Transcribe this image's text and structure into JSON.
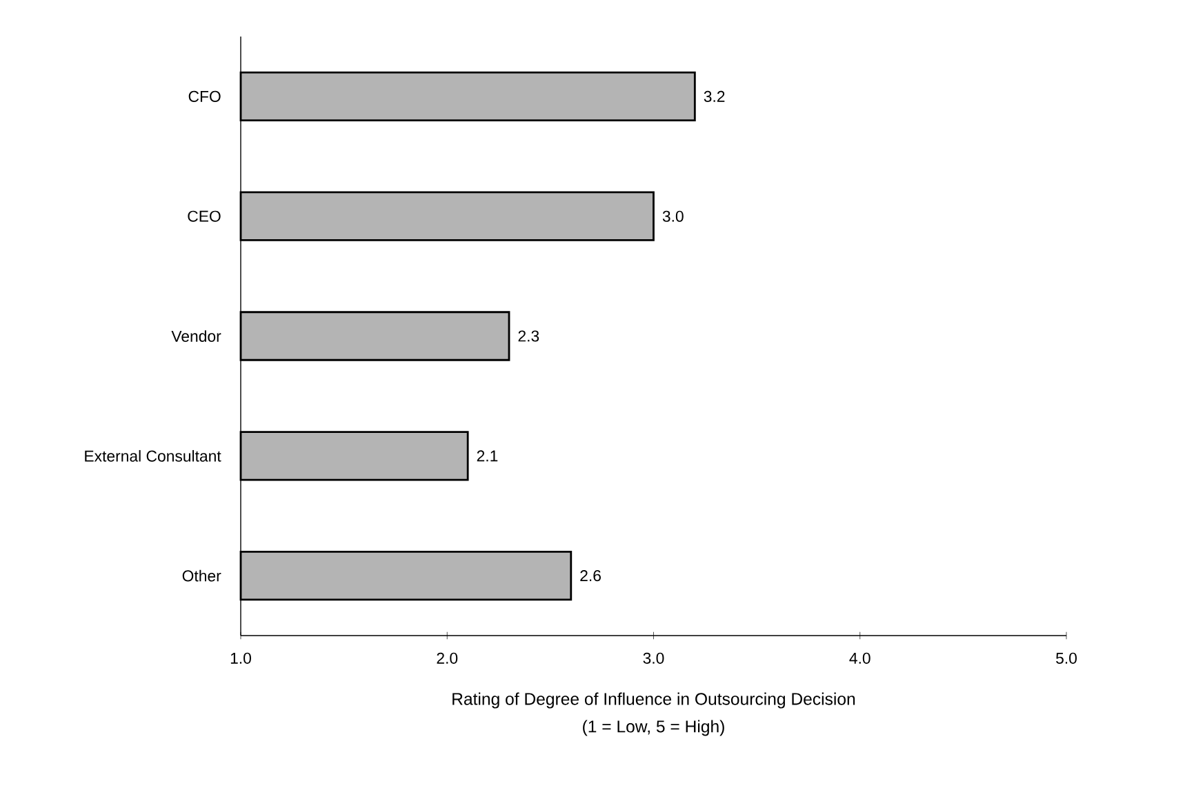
{
  "chart_data": {
    "type": "bar",
    "orientation": "horizontal",
    "categories": [
      "CFO",
      "CEO",
      "Vendor",
      "External Consultant",
      "Other"
    ],
    "values": [
      3.2,
      3.0,
      2.3,
      2.1,
      2.6
    ],
    "value_labels": [
      "3.2",
      "3.0",
      "2.3",
      "2.1",
      "2.6"
    ],
    "color": "#b4b4b4",
    "xlim": [
      1,
      5
    ],
    "xticks": [
      {
        "value": 1,
        "label": "1.0"
      },
      {
        "value": 2,
        "label": "2.0"
      },
      {
        "value": 3,
        "label": "3.0"
      },
      {
        "value": 4,
        "label": "4.0"
      },
      {
        "value": 5,
        "label": "5.0"
      }
    ],
    "xlabel": "Rating of Degree of Influence in Outsourcing Decision",
    "annotations": [
      "(1 = Low, 5 = High)"
    ],
    "grid": false
  }
}
